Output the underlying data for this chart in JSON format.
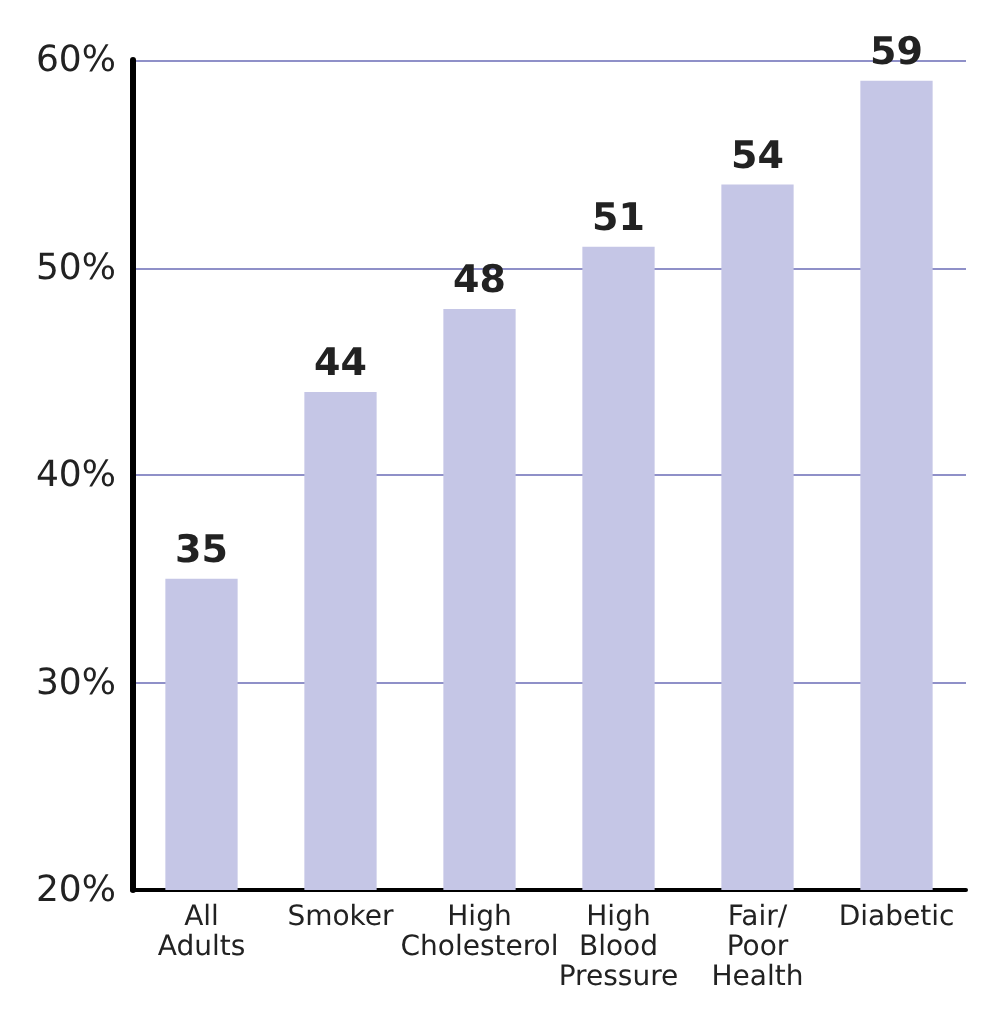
{
  "chart_data": {
    "type": "bar",
    "categories": [
      "All\nAdults",
      "Smoker",
      "High\nCholesterol",
      "High\nBlood\nPressure",
      "Fair/\nPoor\nHealth",
      "Diabetic"
    ],
    "values": [
      35,
      44,
      48,
      51,
      54,
      59
    ],
    "color": "#c5c6e6",
    "ylim": [
      20,
      60
    ],
    "yticks": [
      {
        "value": 20,
        "label": "20%"
      },
      {
        "value": 30,
        "label": "30%"
      },
      {
        "value": 40,
        "label": "40%"
      },
      {
        "value": 50,
        "label": "50%"
      },
      {
        "value": 60,
        "label": "60%"
      }
    ],
    "grid": "y",
    "data_labels": true
  }
}
